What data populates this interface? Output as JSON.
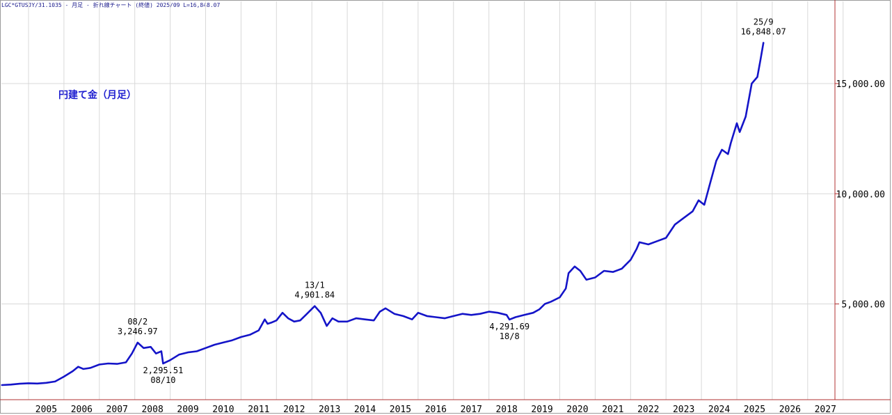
{
  "header": {
    "info_line": "LGC*GTUSJY/31.1035 - 月足 - 折れ線チャート (終値) 2025/09 L=16,848.07"
  },
  "chart_data": {
    "type": "line",
    "title": "円建て金（月足）",
    "xlabel": "",
    "ylabel": "",
    "x_ticks": [
      "2005",
      "2006",
      "2007",
      "2008",
      "2009",
      "2010",
      "2011",
      "2012",
      "2013",
      "2014",
      "2015",
      "2016",
      "2017",
      "2018",
      "2019",
      "2020",
      "2021",
      "2022",
      "2023",
      "2024",
      "2025",
      "2026",
      "2027"
    ],
    "y_ticks": [
      "5,000.00",
      "10,000.00",
      "15,000.00"
    ],
    "ylim": [
      1000,
      18500
    ],
    "grid": true,
    "colors": {
      "line": "#1414c8",
      "grid": "#d8d8d8",
      "axis": "#b03030",
      "text": "#000000"
    },
    "series": [
      {
        "values": [
          [
            2004.25,
            1320
          ],
          [
            2004.5,
            1340
          ],
          [
            2004.75,
            1380
          ],
          [
            2005.0,
            1400
          ],
          [
            2005.25,
            1390
          ],
          [
            2005.5,
            1420
          ],
          [
            2005.75,
            1480
          ],
          [
            2006.0,
            1700
          ],
          [
            2006.25,
            1950
          ],
          [
            2006.4,
            2150
          ],
          [
            2006.55,
            2050
          ],
          [
            2006.75,
            2100
          ],
          [
            2007.0,
            2250
          ],
          [
            2007.25,
            2300
          ],
          [
            2007.5,
            2280
          ],
          [
            2007.75,
            2350
          ],
          [
            2007.92,
            2750
          ],
          [
            2008.08,
            3246.97
          ],
          [
            2008.25,
            3000
          ],
          [
            2008.45,
            3050
          ],
          [
            2008.6,
            2750
          ],
          [
            2008.75,
            2850
          ],
          [
            2008.8,
            2295.51
          ],
          [
            2009.0,
            2450
          ],
          [
            2009.25,
            2700
          ],
          [
            2009.5,
            2800
          ],
          [
            2009.75,
            2850
          ],
          [
            2010.0,
            3000
          ],
          [
            2010.25,
            3150
          ],
          [
            2010.5,
            3250
          ],
          [
            2010.75,
            3350
          ],
          [
            2011.0,
            3500
          ],
          [
            2011.25,
            3600
          ],
          [
            2011.5,
            3800
          ],
          [
            2011.67,
            4300
          ],
          [
            2011.75,
            4100
          ],
          [
            2011.85,
            4150
          ],
          [
            2012.0,
            4250
          ],
          [
            2012.17,
            4600
          ],
          [
            2012.33,
            4350
          ],
          [
            2012.5,
            4200
          ],
          [
            2012.67,
            4250
          ],
          [
            2012.83,
            4500
          ],
          [
            2013.08,
            4901.84
          ],
          [
            2013.25,
            4600
          ],
          [
            2013.42,
            4000
          ],
          [
            2013.58,
            4350
          ],
          [
            2013.75,
            4200
          ],
          [
            2014.0,
            4200
          ],
          [
            2014.25,
            4350
          ],
          [
            2014.5,
            4300
          ],
          [
            2014.75,
            4250
          ],
          [
            2014.92,
            4650
          ],
          [
            2015.08,
            4800
          ],
          [
            2015.33,
            4550
          ],
          [
            2015.58,
            4450
          ],
          [
            2015.83,
            4300
          ],
          [
            2016.0,
            4600
          ],
          [
            2016.25,
            4450
          ],
          [
            2016.5,
            4400
          ],
          [
            2016.75,
            4350
          ],
          [
            2017.0,
            4450
          ],
          [
            2017.25,
            4550
          ],
          [
            2017.5,
            4500
          ],
          [
            2017.75,
            4550
          ],
          [
            2018.0,
            4650
          ],
          [
            2018.25,
            4600
          ],
          [
            2018.5,
            4500
          ],
          [
            2018.58,
            4291.69
          ],
          [
            2018.75,
            4400
          ],
          [
            2019.0,
            4500
          ],
          [
            2019.25,
            4600
          ],
          [
            2019.42,
            4750
          ],
          [
            2019.58,
            5000
          ],
          [
            2019.75,
            5100
          ],
          [
            2020.0,
            5300
          ],
          [
            2020.17,
            5700
          ],
          [
            2020.25,
            6400
          ],
          [
            2020.42,
            6700
          ],
          [
            2020.58,
            6500
          ],
          [
            2020.75,
            6100
          ],
          [
            2021.0,
            6200
          ],
          [
            2021.25,
            6500
          ],
          [
            2021.5,
            6450
          ],
          [
            2021.75,
            6600
          ],
          [
            2022.0,
            7000
          ],
          [
            2022.17,
            7500
          ],
          [
            2022.25,
            7800
          ],
          [
            2022.5,
            7700
          ],
          [
            2022.75,
            7850
          ],
          [
            2023.0,
            8000
          ],
          [
            2023.25,
            8600
          ],
          [
            2023.5,
            8900
          ],
          [
            2023.75,
            9200
          ],
          [
            2023.92,
            9700
          ],
          [
            2024.08,
            9500
          ],
          [
            2024.25,
            10500
          ],
          [
            2024.42,
            11500
          ],
          [
            2024.58,
            12000
          ],
          [
            2024.75,
            11800
          ],
          [
            2024.83,
            12300
          ],
          [
            2025.0,
            13200
          ],
          [
            2025.08,
            12800
          ],
          [
            2025.25,
            13500
          ],
          [
            2025.42,
            15000
          ],
          [
            2025.58,
            15300
          ],
          [
            2025.67,
            16100
          ],
          [
            2025.75,
            16848.07
          ]
        ]
      }
    ],
    "annotations": [
      {
        "label_top": "08/2",
        "label_bottom": "3,246.97",
        "x": 2008.08,
        "y": 3246.97,
        "pos": "above"
      },
      {
        "label_top": "2,295.51",
        "label_bottom": "08/10",
        "x": 2008.8,
        "y": 2295.51,
        "pos": "below"
      },
      {
        "label_top": "13/1",
        "label_bottom": "4,901.84",
        "x": 2013.08,
        "y": 4901.84,
        "pos": "above"
      },
      {
        "label_top": "4,291.69",
        "label_bottom": "18/8",
        "x": 2018.58,
        "y": 4291.69,
        "pos": "below"
      },
      {
        "label_top": "25/9",
        "label_bottom": "16,848.07",
        "x": 2025.75,
        "y": 16848.07,
        "pos": "above"
      }
    ]
  }
}
